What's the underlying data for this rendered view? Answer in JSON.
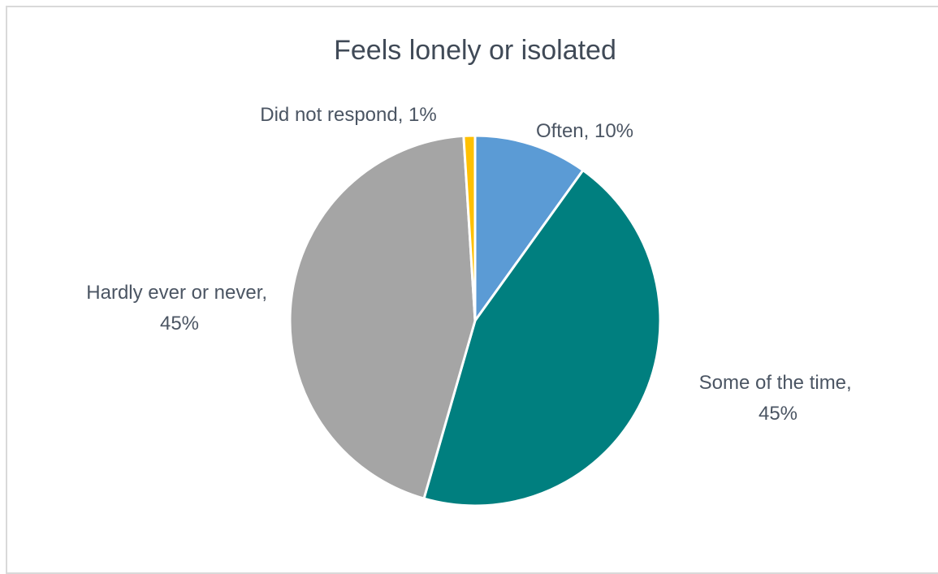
{
  "chart_data": {
    "type": "pie",
    "title": "Feels lonely or isolated",
    "categories": [
      "Often",
      "Some of the time",
      "Hardly ever or never",
      "Did not respond"
    ],
    "values": [
      10,
      45,
      45,
      1
    ],
    "colors": [
      "#5b9bd5",
      "#007f7f",
      "#a5a5a5",
      "#ffc000"
    ],
    "labels": [
      {
        "category": "Often",
        "lines": [
          "Often, 10%"
        ]
      },
      {
        "category": "Some of the time",
        "lines": [
          "Some of the time,",
          "45%"
        ]
      },
      {
        "category": "Hardly ever or never",
        "lines": [
          "Hardly ever or never,",
          "45%"
        ]
      },
      {
        "category": "Did not respond",
        "lines": [
          "Did not respond, 1%"
        ]
      }
    ],
    "legend": "none"
  }
}
